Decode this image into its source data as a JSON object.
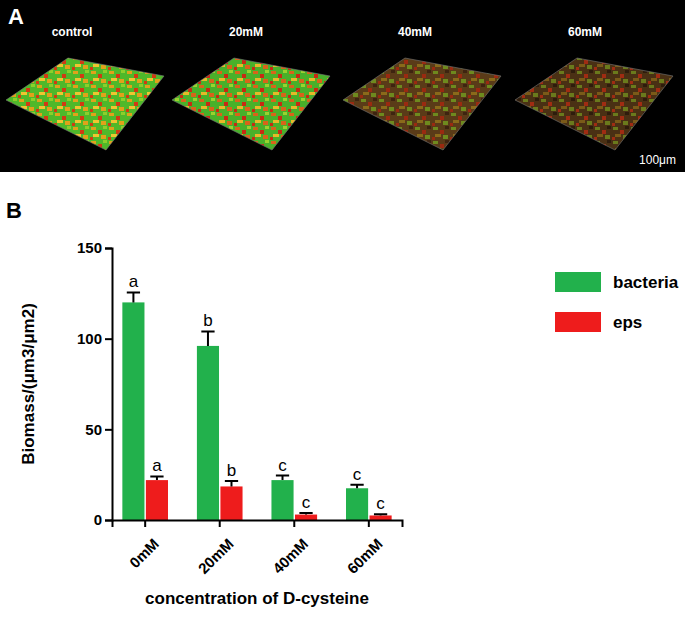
{
  "panels": {
    "labels": [
      "A",
      "B"
    ]
  },
  "image_panel": {
    "titles": [
      "control",
      "20mM",
      "40mM",
      "60mM"
    ],
    "scale_bar": "100μm"
  },
  "chart_data": {
    "type": "bar",
    "categories": [
      "0mM",
      "20mM",
      "40mM",
      "60mM"
    ],
    "x_label": "concentration of D-cysteine",
    "y_label": "Biomass/(μm3/μm2)",
    "ylim": [
      0,
      150
    ],
    "yticks": [
      0,
      50,
      100,
      150
    ],
    "legend": "right",
    "series": [
      {
        "name": "bacteria",
        "color": "#22b14c",
        "values": [
          120,
          96,
          22,
          17.5
        ],
        "errors": [
          5.5,
          8,
          2.5,
          2
        ],
        "significance": [
          "a",
          "b",
          "c",
          "c"
        ]
      },
      {
        "name": "eps",
        "color": "#ee1c1c",
        "values": [
          22,
          18.5,
          3,
          2.5
        ],
        "errors": [
          2,
          3,
          0.8,
          0.7
        ],
        "significance": [
          "a",
          "b",
          "c",
          "c"
        ]
      }
    ]
  }
}
